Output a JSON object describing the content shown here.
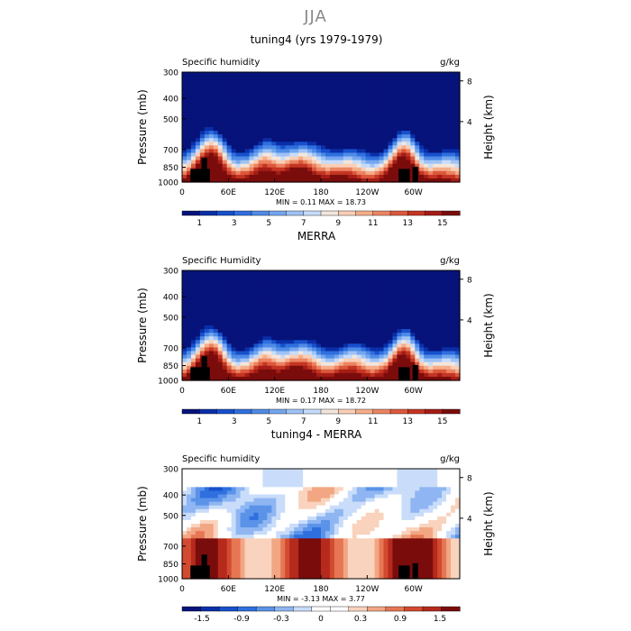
{
  "page_title": "JJA",
  "chart_data": [
    {
      "type": "heatmap",
      "title": "tuning4 (yrs 1979-1979)",
      "left_label": "Specific humidity",
      "units": "g/kg",
      "ylabel": "Pressure (mb)",
      "ylabel_right": "Height (km)",
      "xticks": [
        "0",
        "60E",
        "120E",
        "180",
        "120W",
        "60W"
      ],
      "yticks": [
        "300",
        "400",
        "500",
        "700",
        "850",
        "1000"
      ],
      "right_ticks": [
        "8",
        "4"
      ],
      "ylim": [
        1000,
        300
      ],
      "stats": "MIN =    0.11   MAX =   18.73",
      "colorbar_labels": [
        "1",
        "3",
        "5",
        "7",
        "9",
        "11",
        "13",
        "15"
      ],
      "colorbar_colors": [
        "#06137a",
        "#0a2fa8",
        "#1750cc",
        "#2f6fde",
        "#4f8be6",
        "#74a6ee",
        "#9ec2f5",
        "#c6dcfa",
        "#f3e6dc",
        "#f9cfb6",
        "#f5ad8a",
        "#ec8462",
        "#dc593c",
        "#c53524",
        "#a51d16",
        "#7a0c0c"
      ]
    },
    {
      "type": "heatmap",
      "title": "MERRA",
      "left_label": "Specific Humidity",
      "units": "g/kg",
      "ylabel": "Pressure (mb)",
      "ylabel_right": "Height (km)",
      "xticks": [
        "0",
        "60E",
        "120E",
        "180",
        "120W",
        "60W"
      ],
      "yticks": [
        "300",
        "400",
        "500",
        "700",
        "850",
        "1000"
      ],
      "right_ticks": [
        "8",
        "4"
      ],
      "ylim": [
        1000,
        300
      ],
      "stats": "MIN =    0.17   MAX =   18.72",
      "colorbar_labels": [
        "1",
        "3",
        "5",
        "7",
        "9",
        "11",
        "13",
        "15"
      ],
      "colorbar_colors": [
        "#06137a",
        "#0a2fa8",
        "#1750cc",
        "#2f6fde",
        "#4f8be6",
        "#74a6ee",
        "#9ec2f5",
        "#c6dcfa",
        "#f3e6dc",
        "#f9cfb6",
        "#f5ad8a",
        "#ec8462",
        "#dc593c",
        "#c53524",
        "#a51d16",
        "#7a0c0c"
      ]
    },
    {
      "type": "heatmap",
      "title": "tuning4 - MERRA",
      "left_label": "Specific humidity",
      "units": "g/kg",
      "ylabel": "Pressure (mb)",
      "ylabel_right": "Height (km)",
      "xticks": [
        "0",
        "60E",
        "120E",
        "180",
        "120W",
        "60W"
      ],
      "yticks": [
        "300",
        "400",
        "500",
        "700",
        "850",
        "1000"
      ],
      "right_ticks": [
        "8",
        "4"
      ],
      "ylim": [
        1000,
        300
      ],
      "stats": "MIN =   -3.13   MAX =    3.77",
      "colorbar_labels": [
        "-1.5",
        "-0.9",
        "-0.3",
        "0",
        "0.3",
        "0.9",
        "1.5"
      ],
      "colorbar_colors": [
        "#06137a",
        "#0a2fa8",
        "#1750cc",
        "#2f6fde",
        "#5a93e8",
        "#8fb6f2",
        "#c9ddfa",
        "#ffffff",
        "#ffffff",
        "#f9d3bd",
        "#f2a683",
        "#e67654",
        "#d24a30",
        "#b52a1c",
        "#7a0c0c"
      ]
    }
  ]
}
